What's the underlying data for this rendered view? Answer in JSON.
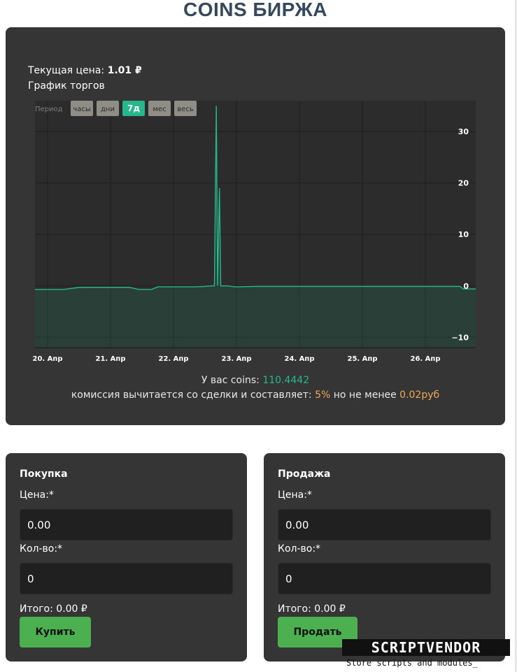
{
  "header": {
    "title": "COINS БИРЖА"
  },
  "price": {
    "label": "Текущая цена:",
    "value": "1.01 ₽"
  },
  "chart_caption": "График торгов",
  "period": {
    "label": "Период",
    "options": [
      "часы",
      "дни",
      "7д",
      "мес",
      "весь"
    ],
    "selected": "7д"
  },
  "chart_data": {
    "type": "area",
    "title": "",
    "xlabel": "",
    "ylabel": "",
    "ylim": [
      -12,
      36
    ],
    "yticks": [
      "30",
      "20",
      "10",
      "0",
      "−10"
    ],
    "x_tick_labels": [
      "20. Апр",
      "21. Апр",
      "22. Апр",
      "23. Апр",
      "24. Апр",
      "25. Апр",
      "26. Апр"
    ],
    "x_range_days": [
      -0.2,
      6.8
    ],
    "series_color": "#26b88a",
    "points": [
      [
        -0.2,
        -0.7
      ],
      [
        0.25,
        -0.7
      ],
      [
        0.5,
        -0.3
      ],
      [
        1.0,
        -0.3
      ],
      [
        1.3,
        -0.3
      ],
      [
        1.45,
        -0.7
      ],
      [
        1.65,
        -0.7
      ],
      [
        1.75,
        -0.2
      ],
      [
        2.0,
        -0.2
      ],
      [
        2.3,
        -0.2
      ],
      [
        2.5,
        -0.1
      ],
      [
        2.6,
        0.0
      ],
      [
        2.65,
        0.0
      ],
      [
        2.68,
        35.0
      ],
      [
        2.7,
        0.0
      ],
      [
        2.73,
        19.0
      ],
      [
        2.75,
        0.0
      ],
      [
        2.85,
        0.0
      ],
      [
        3.0,
        -0.2
      ],
      [
        3.3,
        -0.1
      ],
      [
        4.0,
        -0.1
      ],
      [
        5.0,
        -0.1
      ],
      [
        6.0,
        -0.1
      ],
      [
        6.55,
        -0.1
      ],
      [
        6.6,
        -0.6
      ],
      [
        6.8,
        -0.6
      ]
    ]
  },
  "balance": {
    "label": "У вас coins:",
    "value": "110.4442"
  },
  "commission": {
    "text_before": "комиссия вычитается со сделки и составляет:",
    "percent": "5%",
    "text_middle": "но не менее",
    "min_fee": "0.02руб"
  },
  "buy": {
    "title": "Покупка",
    "price_label": "Цена:*",
    "price_value": "0.00",
    "qty_label": "Кол-во:*",
    "qty_value": "0",
    "total": "Итого: 0.00 ₽",
    "button": "Купить"
  },
  "sell": {
    "title": "Продажа",
    "price_label": "Цена:*",
    "price_value": "0.00",
    "qty_label": "Кол-во:*",
    "qty_value": "0",
    "total": "Итого: 0.00 ₽",
    "button": "Продать"
  },
  "watermark": {
    "logo": "SCRIPTVENDOR",
    "tagline": "Store scripts and modules_"
  },
  "colors": {
    "accent": "#26b88a",
    "buy_button": "#4caf50",
    "card_bg": "#353535",
    "title_color": "#34495e",
    "commission_highlight": "#f0a85a"
  }
}
